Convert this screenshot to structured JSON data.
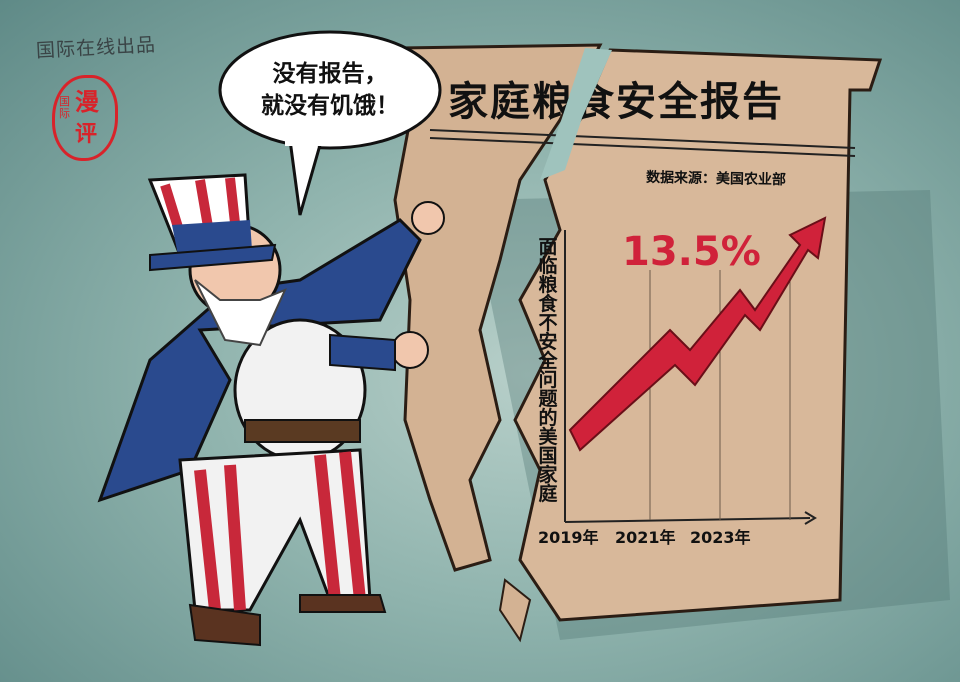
{
  "credit": "国际在线出品",
  "seal": {
    "small": "国际",
    "big1": "漫",
    "big2": "评"
  },
  "speech_bubble": {
    "line1": "没有报告，",
    "line2": "就没有饥饿！"
  },
  "report": {
    "title": "家庭粮食安全报告",
    "source": "数据来源：美国农业部",
    "chart_label": "面临粮食不安全问题的美国家庭",
    "value": "13.5%",
    "years": [
      "2019年",
      "2021年",
      "2023年"
    ]
  },
  "colors": {
    "arrow": "#d0223a",
    "paper": "#d8b89a",
    "background": "#8fb3ad",
    "seal": "#d8232a"
  }
}
